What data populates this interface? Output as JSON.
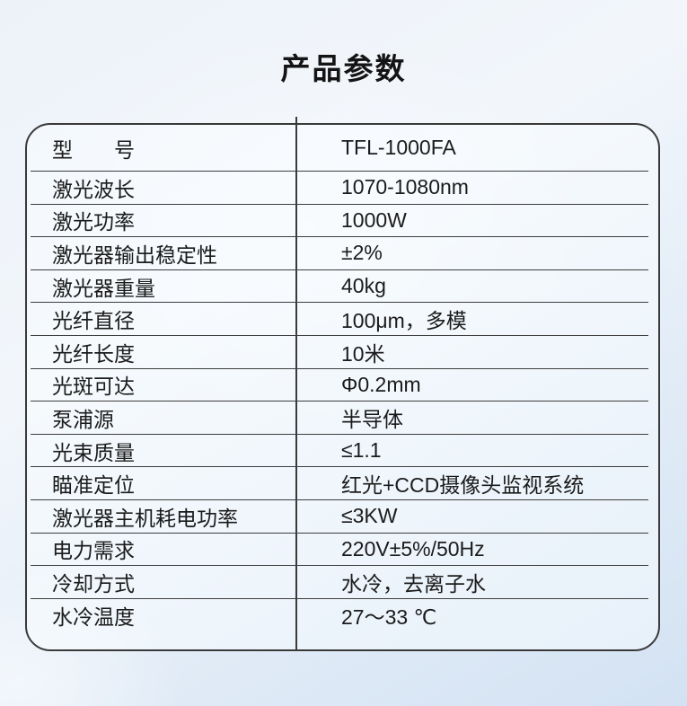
{
  "page": {
    "title": "产品参数"
  },
  "colors": {
    "background_top": "#edf2f9",
    "background_bottom": "#d3e2f3",
    "table_border": "#3a3a3a",
    "row_line": "#3d3d3d",
    "text": "#1b1b1b",
    "table_fill": "rgba(250,253,255,0.5)"
  },
  "table": {
    "rows": [
      {
        "label": "型　　号",
        "value": "TFL-1000FA"
      },
      {
        "label": "激光波长",
        "value": "1070-1080nm"
      },
      {
        "label": "激光功率",
        "value": "1000W"
      },
      {
        "label": "激光器输出稳定性",
        "value": "±2%"
      },
      {
        "label": "激光器重量",
        "value": "40kg"
      },
      {
        "label": "光纤直径",
        "value": "100μm，多模"
      },
      {
        "label": "光纤长度",
        "value": "10米"
      },
      {
        "label": "光斑可达",
        "value": "Φ0.2mm"
      },
      {
        "label": "泵浦源",
        "value": "半导体"
      },
      {
        "label": "光束质量",
        "value": "≤1.1"
      },
      {
        "label": "瞄准定位",
        "value": "红光+CCD摄像头监视系统"
      },
      {
        "label": "激光器主机耗电功率",
        "value": "≤3KW"
      },
      {
        "label": "电力需求",
        "value": "220V±5%/50Hz"
      },
      {
        "label": "冷却方式",
        "value": "水冷，去离子水"
      },
      {
        "label": "水冷温度",
        "value": "27～33 ℃"
      }
    ]
  }
}
